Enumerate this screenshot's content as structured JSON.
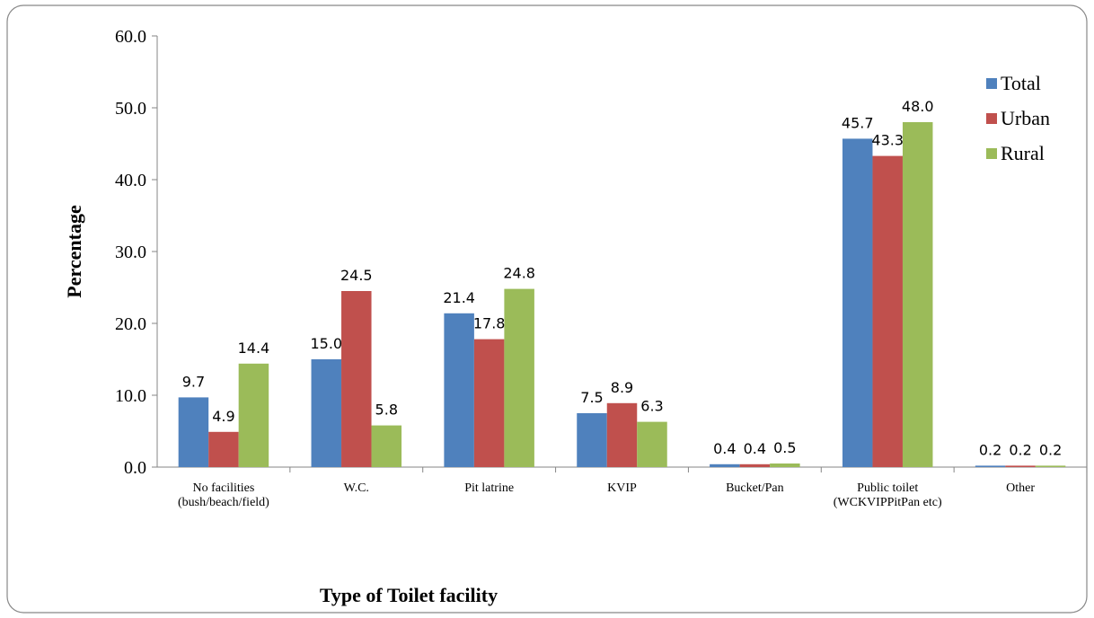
{
  "chart_data": {
    "type": "bar",
    "x_label": "Type of Toilet facility",
    "y_label": "Percentage",
    "categories": [
      "No facilities (bush/beach/field)",
      "W.C.",
      "Pit latrine",
      "KVIP",
      "Bucket/Pan",
      "Public toilet (WCKVIPPitPan etc)",
      "Other"
    ],
    "series": [
      {
        "name": "Total",
        "color": "#4f81bd",
        "values": [
          9.7,
          15.0,
          21.4,
          7.5,
          0.4,
          45.7,
          0.2
        ],
        "value_labels": [
          "9.7",
          "15.0",
          "21.4",
          "7.5",
          "0.4",
          "45.7",
          "0.2"
        ]
      },
      {
        "name": "Urban",
        "color": "#c0504d",
        "values": [
          4.9,
          24.5,
          17.8,
          8.9,
          0.4,
          43.3,
          0.2
        ],
        "value_labels": [
          "4.9",
          "24.5",
          "17.8",
          "8.9",
          "0.4",
          "43.3",
          "0.2"
        ]
      },
      {
        "name": "Rural",
        "color": "#9bbb59",
        "values": [
          14.4,
          5.8,
          24.8,
          6.3,
          0.5,
          48.0,
          0.2
        ],
        "value_labels": [
          "14.4",
          "5.8",
          "24.8",
          "6.3",
          "0.5",
          "48.0",
          "0.2"
        ]
      }
    ],
    "ylim": [
      0,
      60
    ],
    "yticks": [
      {
        "value": 0,
        "label": "0.0"
      },
      {
        "value": 10,
        "label": "10.0"
      },
      {
        "value": 20,
        "label": "20.0"
      },
      {
        "value": 30,
        "label": "30.0"
      },
      {
        "value": 40,
        "label": "40.0"
      },
      {
        "value": 50,
        "label": "50.0"
      },
      {
        "value": 60,
        "label": "60.0"
      }
    ],
    "grid": false,
    "legend": "upper right"
  }
}
